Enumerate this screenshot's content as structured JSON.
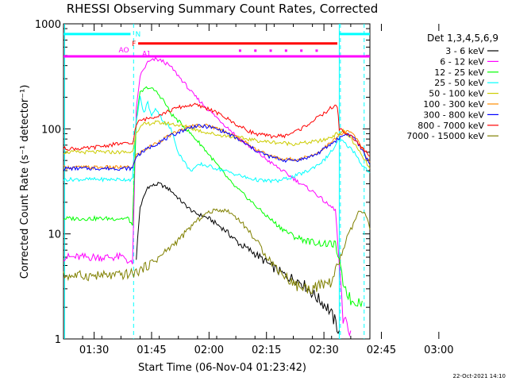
{
  "chart_data": {
    "type": "line",
    "title": "RHESSI Observing Summary Count Rates, Corrected",
    "xlabel": "Start Time (06-Nov-04 01:23:42)",
    "ylabel": "Corrected Count Rate (s⁻¹ detector⁻¹)",
    "ylim": [
      1,
      1000
    ],
    "yscale": "log",
    "xlim_minutes_after_0100": [
      22,
      102
    ],
    "y_tick_labels": [
      "1000",
      "100",
      "10",
      "1"
    ],
    "x_tick_labels": [
      "01:30",
      "01:45",
      "02:00",
      "02:15",
      "02:30",
      "02:45",
      "03:00"
    ],
    "x_tick_minutes": [
      30,
      45,
      60,
      75,
      90,
      105,
      120
    ],
    "legend_title": "Det 1,3,4,5,6,9",
    "legend_position": "right",
    "timestamp": "22-Oct-2021 14:10",
    "flags": {
      "F": {
        "label": "F",
        "color": "#ff0000",
        "start": 41.5,
        "end": 93.5,
        "level": 650
      },
      "AO": {
        "label": "AO",
        "color": "#ff00ff",
        "start": 22,
        "end": 102,
        "level": 490
      },
      "N": {
        "label": "N",
        "color": "#00ffff",
        "start_a": 22,
        "end_a": 39.5,
        "start_b": 94,
        "end_b": 102,
        "level": 800
      },
      "A1": {
        "label": "A1",
        "color": "#ff00ff"
      }
    },
    "dashed_markers_minutes": [
      40.3,
      94.3,
      100.5
    ],
    "solid_markers_minutes": [
      22.3,
      94.0
    ],
    "series": [
      {
        "name": "3 - 6 keV",
        "color": "#000000",
        "x": [
          41,
          42,
          44,
          47,
          50,
          53,
          56,
          60,
          64,
          68,
          72,
          76,
          80,
          84,
          88,
          91,
          94
        ],
        "y": [
          6,
          18,
          28,
          30,
          26,
          20,
          16,
          14,
          11,
          8,
          6.5,
          5,
          4,
          3.5,
          2.5,
          2.0,
          1.2
        ]
      },
      {
        "name": "6 - 12 keV",
        "color": "#ff00ff",
        "x": [
          22,
          36,
          38,
          40,
          41,
          42,
          44,
          46,
          48,
          50,
          52,
          54,
          56,
          60,
          64,
          68,
          72,
          76,
          80,
          84,
          88,
          91,
          93,
          95,
          97
        ],
        "y": [
          6,
          6,
          6,
          5,
          150,
          320,
          430,
          460,
          440,
          390,
          320,
          260,
          210,
          150,
          110,
          80,
          62,
          48,
          38,
          30,
          24,
          19,
          17,
          1.5,
          1.2
        ]
      },
      {
        "name": "12 - 25 keV",
        "color": "#00ff00",
        "x": [
          22,
          36,
          39,
          40,
          41,
          42,
          44,
          46,
          48,
          50,
          54,
          58,
          62,
          66,
          70,
          74,
          78,
          82,
          86,
          90,
          93,
          95,
          97,
          100
        ],
        "y": [
          14,
          14,
          14,
          12,
          120,
          220,
          250,
          230,
          190,
          140,
          100,
          70,
          46,
          30,
          22,
          16,
          12,
          9.5,
          8.5,
          8,
          8,
          3.5,
          2.3,
          2.3
        ]
      },
      {
        "name": "25 - 50 keV",
        "color": "#00ffff",
        "x": [
          22,
          36,
          40,
          41,
          42,
          43,
          44,
          45,
          46,
          48,
          50,
          52,
          55,
          58,
          62,
          66,
          70,
          74,
          78,
          82,
          86,
          90,
          93,
          94,
          96,
          98,
          100,
          102
        ],
        "y": [
          33,
          33,
          33,
          120,
          200,
          140,
          180,
          130,
          160,
          120,
          100,
          60,
          40,
          46,
          42,
          38,
          34,
          32,
          32,
          35,
          40,
          50,
          68,
          80,
          70,
          60,
          45,
          38
        ]
      },
      {
        "name": "50 - 100 keV",
        "color": "#cccc00",
        "x": [
          22,
          36,
          40,
          41,
          43,
          46,
          50,
          54,
          58,
          62,
          66,
          70,
          74,
          78,
          82,
          86,
          90,
          93,
          95,
          97,
          99,
          101,
          102
        ],
        "y": [
          60,
          60,
          60,
          95,
          110,
          115,
          112,
          105,
          95,
          88,
          84,
          80,
          76,
          74,
          72,
          74,
          78,
          88,
          95,
          82,
          62,
          48,
          42
        ]
      },
      {
        "name": "100 - 300 keV",
        "color": "#ff8c00",
        "x": [
          22,
          36,
          40,
          41,
          44,
          48,
          52,
          56,
          60,
          64,
          68,
          72,
          76,
          80,
          84,
          88,
          91,
          94,
          96,
          98,
          100,
          102
        ],
        "y": [
          43,
          43,
          43,
          56,
          66,
          80,
          95,
          108,
          107,
          96,
          80,
          65,
          55,
          51,
          52,
          58,
          70,
          86,
          96,
          86,
          65,
          48
        ]
      },
      {
        "name": "300 - 800 keV",
        "color": "#0000ff",
        "x": [
          22,
          36,
          40,
          41,
          44,
          48,
          52,
          56,
          60,
          64,
          68,
          72,
          76,
          80,
          84,
          88,
          91,
          94,
          96,
          98,
          100,
          102
        ],
        "y": [
          42,
          42,
          42,
          55,
          65,
          78,
          93,
          106,
          105,
          94,
          78,
          63,
          54,
          50,
          51,
          57,
          68,
          82,
          90,
          82,
          62,
          46
        ]
      },
      {
        "name": "800 - 7000 keV",
        "color": "#ff0000",
        "x": [
          22,
          28,
          34,
          36,
          40,
          41,
          42,
          44,
          48,
          52,
          56,
          60,
          64,
          68,
          72,
          76,
          80,
          84,
          88,
          90,
          92,
          93.5,
          94,
          96,
          98,
          100,
          102
        ],
        "y": [
          65,
          65,
          70,
          72,
          72,
          110,
          120,
          125,
          140,
          160,
          170,
          155,
          130,
          105,
          90,
          85,
          86,
          100,
          125,
          140,
          160,
          165,
          100,
          90,
          80,
          65,
          55
        ]
      },
      {
        "name": "7000 - 15000 keV",
        "color": "#808000",
        "x": [
          22,
          30,
          36,
          40,
          41,
          44,
          47,
          50,
          53,
          56,
          59,
          62,
          65,
          68,
          71,
          74,
          77,
          80,
          83,
          86,
          89,
          92,
          94,
          96,
          98,
          99,
          101,
          102
        ],
        "y": [
          4,
          4,
          4,
          4.2,
          4.3,
          5,
          6,
          7.5,
          9.5,
          12.5,
          15.5,
          17,
          16.5,
          13.5,
          10,
          7,
          5,
          3.9,
          3.2,
          3.0,
          3.2,
          3.5,
          5.5,
          9,
          13,
          16.5,
          15,
          11
        ]
      }
    ]
  }
}
